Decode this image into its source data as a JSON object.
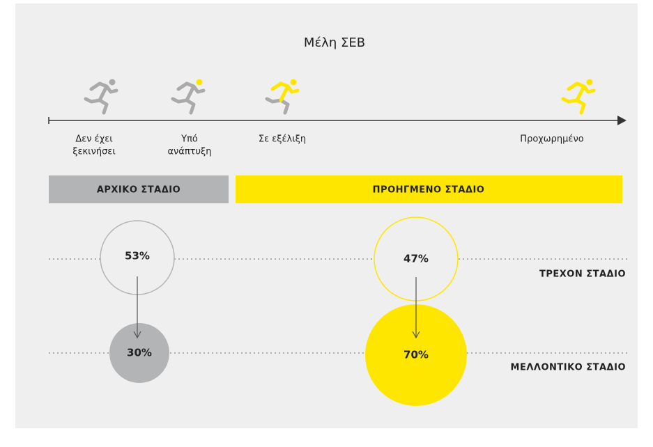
{
  "title": "Μέλη ΣΕΒ",
  "stages": [
    [
      "Δεν έχει",
      "ξεκινήσει"
    ],
    [
      "Υπό",
      "ανάπτυξη"
    ],
    [
      "Σε εξέλιξη"
    ],
    [
      "Προχωρημένο"
    ]
  ],
  "phases": [
    "ΑΡΧΙΚΟ ΣΤΑΔΙΟ",
    "ΠΡΟΗΓΜΕΝΟ ΣΤΑΔΙΟ"
  ],
  "rows": [
    "ΤΡΕΧΟΝ ΣΤΑΔΙΟ",
    "ΜΕΛΛΟΝΤΙΚΟ ΣΤΑΔΙΟ"
  ],
  "circles": {
    "current": [
      "53%",
      "47%"
    ],
    "future": [
      "30%",
      "70%"
    ]
  }
}
